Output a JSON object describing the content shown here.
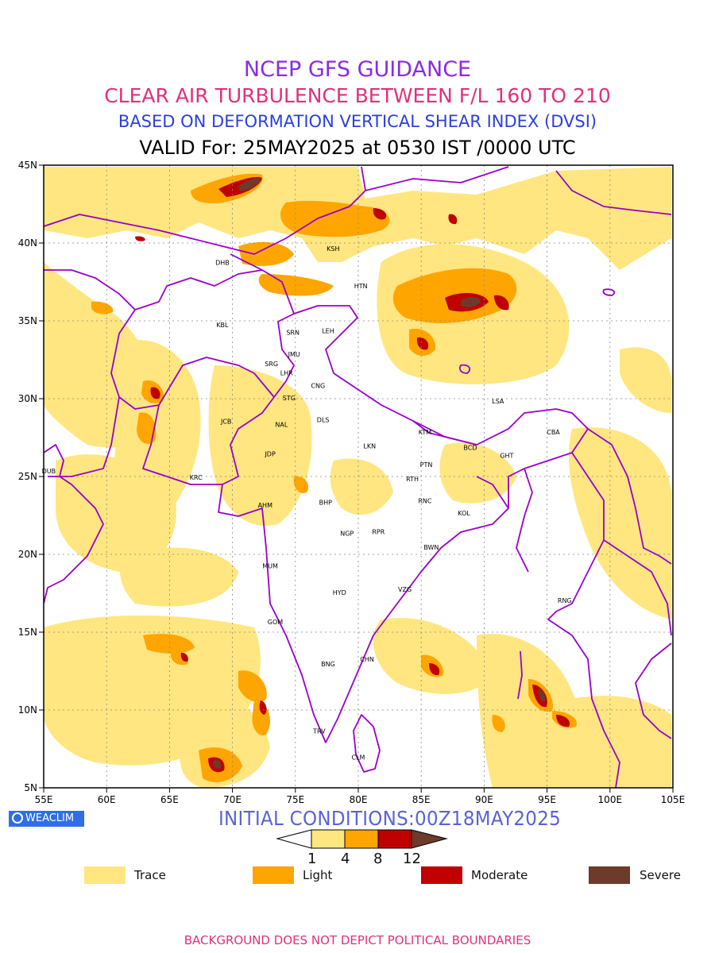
{
  "titles": {
    "line1": "NCEP GFS GUIDANCE",
    "line2": "CLEAR AIR TURBULENCE BETWEEN F/L 160 TO 210",
    "line3": "BASED ON DEFORMATION VERTICAL SHEAR INDEX (DVSI)",
    "line4": "VALID For: 25MAY2025 at 0530 IST /0000 UTC"
  },
  "axes": {
    "lat_labels": [
      "45N",
      "40N",
      "35N",
      "30N",
      "25N",
      "20N",
      "15N",
      "10N",
      "5N"
    ],
    "lon_labels": [
      "55E",
      "60E",
      "65E",
      "70E",
      "75E",
      "80E",
      "85E",
      "90E",
      "95E",
      "100E",
      "105E"
    ]
  },
  "cities": [
    {
      "code": "KSH",
      "lon": 78.0,
      "lat": 39.5
    },
    {
      "code": "DHB",
      "lon": 69.2,
      "lon_note": "",
      "lat": 38.6
    },
    {
      "code": "HTN",
      "lon": 80.2,
      "lat": 37.1
    },
    {
      "code": "KBL",
      "lon": 69.2,
      "lat": 34.6
    },
    {
      "code": "SRN",
      "lon": 74.8,
      "lat": 34.1
    },
    {
      "code": "LEH",
      "lon": 77.6,
      "lat": 34.2
    },
    {
      "code": "JMU",
      "lon": 74.9,
      "lat": 32.7
    },
    {
      "code": "SRG",
      "lon": 73.1,
      "lat": 32.1
    },
    {
      "code": "LHR",
      "lon": 74.3,
      "lat": 31.5
    },
    {
      "code": "CNG",
      "lon": 76.8,
      "lat": 30.7
    },
    {
      "code": "STG",
      "lon": 74.5,
      "lat": 29.9
    },
    {
      "code": "JCB",
      "lon": 69.5,
      "lat": 28.4
    },
    {
      "code": "NAL",
      "lon": 73.9,
      "lat": 28.2
    },
    {
      "code": "DLS",
      "lon": 77.2,
      "lat": 28.5
    },
    {
      "code": "LSA",
      "lon": 91.1,
      "lat": 29.7
    },
    {
      "code": "KTM",
      "lon": 85.3,
      "lat": 27.7
    },
    {
      "code": "BCD",
      "lon": 88.9,
      "lat": 26.7
    },
    {
      "code": "CBA",
      "lon": 95.5,
      "lat": 27.7
    },
    {
      "code": "GHT",
      "lon": 91.8,
      "lat": 26.2
    },
    {
      "code": "LKN",
      "lon": 80.9,
      "lat": 26.8
    },
    {
      "code": "JDP",
      "lon": 73.0,
      "lat": 26.3
    },
    {
      "code": "PTN",
      "lon": 85.4,
      "lat": 25.6
    },
    {
      "code": "DUB",
      "lon": 55.4,
      "lat": 25.2
    },
    {
      "code": "KRC",
      "lon": 67.1,
      "lat": 24.8
    },
    {
      "code": "RTH",
      "lon": 84.3,
      "lat": 24.7
    },
    {
      "code": "AHM",
      "lon": 72.6,
      "lat": 23.0
    },
    {
      "code": "BHP",
      "lon": 77.4,
      "lat": 23.2
    },
    {
      "code": "RNC",
      "lon": 85.3,
      "lat": 23.3
    },
    {
      "code": "KOL",
      "lon": 88.4,
      "lat": 22.5
    },
    {
      "code": "NGP",
      "lon": 79.1,
      "lat": 21.2
    },
    {
      "code": "RPR",
      "lon": 81.6,
      "lat": 21.3
    },
    {
      "code": "BWN",
      "lon": 85.8,
      "lat": 20.3
    },
    {
      "code": "MUM",
      "lon": 73.0,
      "lat": 19.1
    },
    {
      "code": "HYD",
      "lon": 78.5,
      "lat": 17.4
    },
    {
      "code": "VZG",
      "lon": 83.7,
      "lat": 17.6
    },
    {
      "code": "RNG",
      "lon": 96.4,
      "lat": 16.9
    },
    {
      "code": "GOM",
      "lon": 73.4,
      "lat": 15.5
    },
    {
      "code": "CHN",
      "lon": 80.7,
      "lat": 13.1
    },
    {
      "code": "BNG",
      "lon": 77.6,
      "lat": 12.8
    },
    {
      "code": "TRV",
      "lon": 76.9,
      "lat": 8.5
    },
    {
      "code": "CLM",
      "lon": 80.0,
      "lat": 6.8
    }
  ],
  "branding": {
    "badge": "WEACLIM"
  },
  "initial_conditions": "INITIAL CONDITIONS:00Z18MAY2025",
  "colorbar": {
    "ticks": [
      "1",
      "4",
      "8",
      "12"
    ],
    "colors": [
      "#ffe680",
      "#ffa500",
      "#c00000",
      "#6e3a2a"
    ]
  },
  "legend": [
    {
      "label": "Trace",
      "color": "#ffe680"
    },
    {
      "label": "Light",
      "color": "#ffa500"
    },
    {
      "label": "Moderate",
      "color": "#c00000"
    },
    {
      "label": "Severe",
      "color": "#6e3a2a"
    }
  ],
  "footer": "BACKGROUND DOES NOT DEPICT POLITICAL BOUNDARIES",
  "palette": {
    "boundary": "#9900cc",
    "title1": "#8a2be2",
    "title2": "#e0307e",
    "title3": "#2a3fe0"
  }
}
